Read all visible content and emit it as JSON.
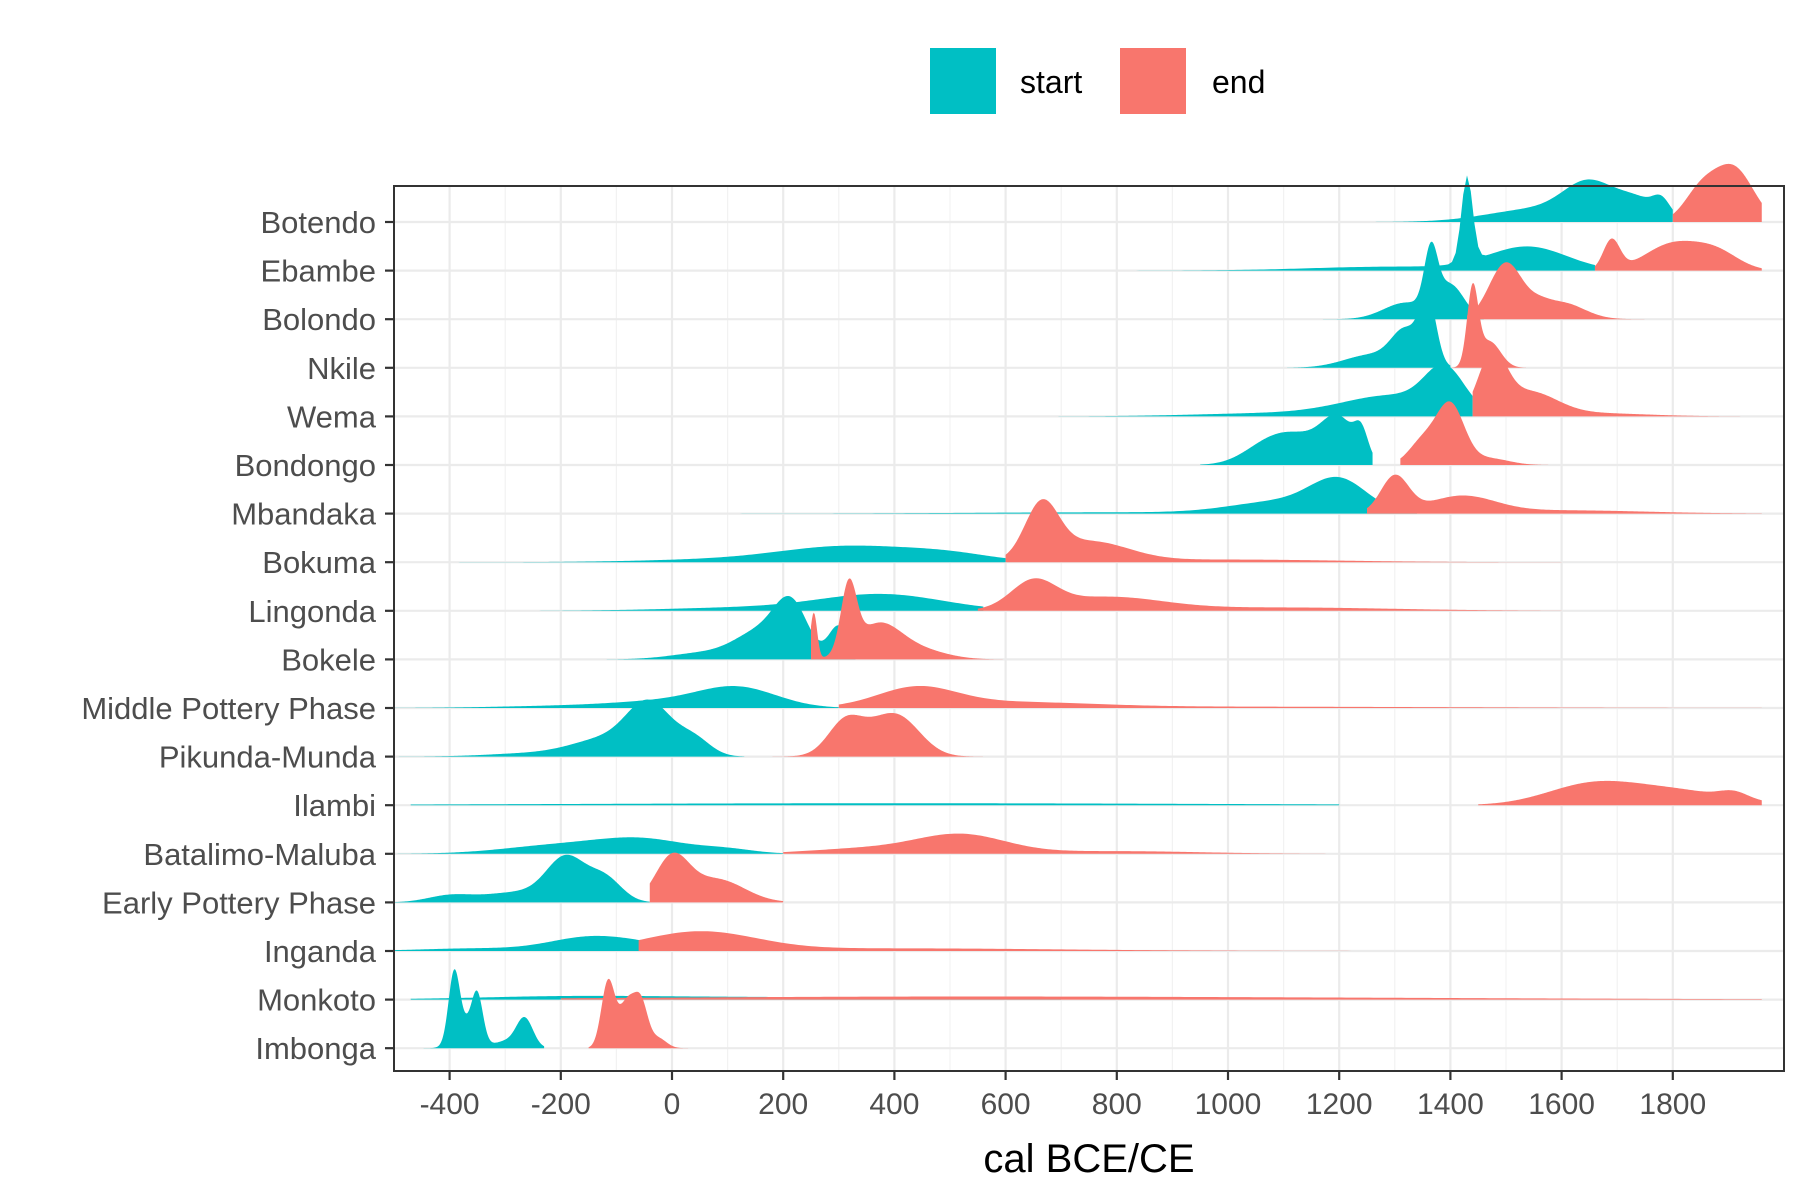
{
  "chart_data": {
    "type": "area",
    "subtype": "ridgeline-density",
    "xlabel": "cal BCE/CE",
    "ylabel": "",
    "xlim": [
      -500,
      2000
    ],
    "x_ticks": [
      -400,
      -200,
      0,
      200,
      400,
      600,
      800,
      1000,
      1200,
      1400,
      1600,
      1800
    ],
    "x_tick_labels": [
      "-400",
      "-200",
      "0",
      "200",
      "400",
      "600",
      "800",
      "1000",
      "1200",
      "1400",
      "1600",
      "1800"
    ],
    "grid": true,
    "legend_position": "top",
    "legend": [
      {
        "name": "start",
        "color": "#00BFC4"
      },
      {
        "name": "end",
        "color": "#F8766D"
      }
    ],
    "categories": [
      "Botendo",
      "Ebambe",
      "Bolondo",
      "Nkile",
      "Wema",
      "Bondongo",
      "Mbandaka",
      "Bokuma",
      "Lingonda",
      "Bokele",
      "Middle Pottery Phase",
      "Pikunda-Munda",
      "Ilambi",
      "Batalimo-Maluba",
      "Early Pottery Phase",
      "Inganda",
      "Monkoto",
      "Imbonga"
    ],
    "note_on_series": "Each category has a start and an end density curve. Peaks are approximated as [center, spread, relative height] components read from the figure; range gives the visible extent.",
    "series": [
      {
        "name": "start",
        "color": "#00BFC4",
        "ridges": [
          {
            "category": "Botendo",
            "range": [
              1000,
              1800
            ],
            "peaks": [
              [
                1650,
                45,
                0.5
              ],
              [
                1560,
                90,
                0.2
              ],
              [
                1740,
                40,
                0.3
              ],
              [
                1780,
                15,
                0.2
              ]
            ]
          },
          {
            "category": "Ebambe",
            "range": [
              -100,
              1660
            ],
            "peaks": [
              [
                1430,
                10,
                1.3
              ],
              [
                1540,
                70,
                0.35
              ],
              [
                1300,
                150,
                0.06
              ]
            ]
          },
          {
            "category": "Bolondo",
            "range": [
              1150,
              1460
            ],
            "peaks": [
              [
                1365,
                12,
                0.85
              ],
              [
                1400,
                25,
                0.5
              ],
              [
                1320,
                40,
                0.25
              ]
            ]
          },
          {
            "category": "Nkile",
            "range": [
              1100,
              1400
            ],
            "peaks": [
              [
                1360,
                15,
                0.95
              ],
              [
                1320,
                25,
                0.5
              ],
              [
                1260,
                50,
                0.2
              ]
            ]
          },
          {
            "category": "Wema",
            "range": [
              600,
              1440
            ],
            "peaks": [
              [
                1390,
                35,
                0.6
              ],
              [
                1300,
                90,
                0.3
              ],
              [
                1100,
                150,
                0.05
              ]
            ]
          },
          {
            "category": "Bondongo",
            "range": [
              950,
              1260
            ],
            "peaks": [
              [
                1200,
                30,
                0.6
              ],
              [
                1240,
                12,
                0.35
              ],
              [
                1120,
                55,
                0.45
              ],
              [
                1060,
                40,
                0.12
              ]
            ]
          },
          {
            "category": "Mbandaka",
            "range": [
              -100,
              1340
            ],
            "peaks": [
              [
                1200,
                50,
                0.45
              ],
              [
                1100,
                90,
                0.18
              ],
              [
                800,
                250,
                0.02
              ]
            ]
          },
          {
            "category": "Bokuma",
            "range": [
              -400,
              600
            ],
            "peaks": [
              [
                320,
                120,
                0.23
              ],
              [
                500,
                80,
                0.1
              ],
              [
                100,
                150,
                0.04
              ]
            ]
          },
          {
            "category": "Lingonda",
            "range": [
              -500,
              560
            ],
            "peaks": [
              [
                380,
                110,
                0.24
              ],
              [
                150,
                150,
                0.05
              ]
            ]
          },
          {
            "category": "Bokele",
            "range": [
              -200,
              330
            ],
            "peaks": [
              [
                215,
                30,
                0.75
              ],
              [
                160,
                45,
                0.4
              ],
              [
                300,
                18,
                0.5
              ],
              [
                60,
                60,
                0.1
              ]
            ]
          },
          {
            "category": "Middle Pottery Phase",
            "range": [
              -500,
              300
            ],
            "peaks": [
              [
                120,
                70,
                0.28
              ],
              [
                0,
                100,
                0.1
              ],
              [
                -200,
                120,
                0.03
              ]
            ]
          },
          {
            "category": "Pikunda-Munda",
            "range": [
              -500,
              130
            ],
            "peaks": [
              [
                -40,
                40,
                0.75
              ],
              [
                40,
                30,
                0.25
              ],
              [
                -120,
                60,
                0.25
              ],
              [
                -250,
                80,
                0.05
              ]
            ]
          },
          {
            "category": "Ilambi",
            "range": [
              -470,
              1200
            ],
            "peaks": [
              [
                400,
                600,
                0.03
              ]
            ]
          },
          {
            "category": "Batalimo-Maluba",
            "range": [
              -500,
              200
            ],
            "peaks": [
              [
                -50,
                80,
                0.2
              ],
              [
                -200,
                100,
                0.13
              ],
              [
                100,
                50,
                0.06
              ]
            ]
          },
          {
            "category": "Early Pottery Phase",
            "range": [
              -500,
              -40
            ],
            "peaks": [
              [
                -190,
                35,
                0.65
              ],
              [
                -120,
                30,
                0.35
              ],
              [
                -280,
                60,
                0.15
              ],
              [
                -400,
                40,
                0.1
              ]
            ]
          },
          {
            "category": "Inganda",
            "range": [
              -500,
              300
            ],
            "peaks": [
              [
                -150,
                70,
                0.2
              ],
              [
                -50,
                60,
                0.08
              ],
              [
                -350,
                100,
                0.04
              ]
            ]
          },
          {
            "category": "Monkoto",
            "range": [
              -470,
              700
            ],
            "peaks": [
              [
                100,
                300,
                0.04
              ],
              [
                -200,
                150,
                0.03
              ]
            ]
          },
          {
            "category": "Imbonga",
            "range": [
              -480,
              -230
            ],
            "peaks": [
              [
                -392,
                10,
                1.0
              ],
              [
                -350,
                10,
                0.65
              ],
              [
                -370,
                20,
                0.35
              ],
              [
                -265,
                15,
                0.45
              ],
              [
                -300,
                20,
                0.1
              ]
            ]
          }
        ]
      },
      {
        "name": "end",
        "color": "#F8766D",
        "ridges": [
          {
            "category": "Botendo",
            "range": [
              1800,
              1960
            ],
            "peaks": [
              [
                1910,
                35,
                0.8
              ],
              [
                1850,
                30,
                0.45
              ]
            ]
          },
          {
            "category": "Ebambe",
            "range": [
              1660,
              1960
            ],
            "peaks": [
              [
                1690,
                15,
                0.45
              ],
              [
                1800,
                50,
                0.4
              ],
              [
                1880,
                40,
                0.25
              ]
            ]
          },
          {
            "category": "Bolondo",
            "range": [
              1430,
              1950
            ],
            "peaks": [
              [
                1500,
                30,
                0.85
              ],
              [
                1600,
                40,
                0.25
              ],
              [
                1560,
                20,
                0.1
              ]
            ]
          },
          {
            "category": "Nkile",
            "range": [
              1400,
              1580
            ],
            "peaks": [
              [
                1440,
                10,
                1.15
              ],
              [
                1470,
                20,
                0.4
              ]
            ]
          },
          {
            "category": "Wema",
            "range": [
              1440,
              1960
            ],
            "peaks": [
              [
                1475,
                25,
                0.85
              ],
              [
                1540,
                50,
                0.35
              ],
              [
                1650,
                100,
                0.05
              ]
            ]
          },
          {
            "category": "Bondongo",
            "range": [
              1310,
              1640
            ],
            "peaks": [
              [
                1400,
                25,
                0.9
              ],
              [
                1350,
                25,
                0.35
              ],
              [
                1470,
                35,
                0.1
              ]
            ]
          },
          {
            "category": "Mbandaka",
            "range": [
              1250,
              1960
            ],
            "peaks": [
              [
                1300,
                25,
                0.55
              ],
              [
                1420,
                60,
                0.25
              ],
              [
                1600,
                150,
                0.05
              ]
            ]
          },
          {
            "category": "Bokuma",
            "range": [
              600,
              1600
            ],
            "peaks": [
              [
                665,
                30,
                0.8
              ],
              [
                750,
                70,
                0.3
              ],
              [
                1000,
                200,
                0.04
              ]
            ]
          },
          {
            "category": "Lingonda",
            "range": [
              550,
              1600
            ],
            "peaks": [
              [
                650,
                40,
                0.4
              ],
              [
                780,
                100,
                0.2
              ],
              [
                1100,
                200,
                0.05
              ]
            ]
          },
          {
            "category": "Bokele",
            "range": [
              250,
              680
            ],
            "peaks": [
              [
                255,
                6,
                0.7
              ],
              [
                318,
                14,
                1.0
              ],
              [
                370,
                40,
                0.5
              ],
              [
                440,
                50,
                0.15
              ]
            ]
          },
          {
            "category": "Middle Pottery Phase",
            "range": [
              300,
              1960
            ],
            "peaks": [
              [
                440,
                70,
                0.28
              ],
              [
                600,
                150,
                0.08
              ],
              [
                1000,
                400,
                0.02
              ]
            ]
          },
          {
            "category": "Pikunda-Munda",
            "range": [
              180,
              560
            ],
            "peaks": [
              [
                310,
                30,
                0.4
              ],
              [
                410,
                40,
                0.45
              ],
              [
                360,
                50,
                0.3
              ]
            ]
          },
          {
            "category": "Ilambi",
            "range": [
              1450,
              1960
            ],
            "peaks": [
              [
                1650,
                80,
                0.28
              ],
              [
                1800,
                100,
                0.22
              ],
              [
                1910,
                25,
                0.1
              ]
            ]
          },
          {
            "category": "Batalimo-Maluba",
            "range": [
              200,
              1200
            ],
            "peaks": [
              [
                520,
                80,
                0.28
              ],
              [
                350,
                100,
                0.08
              ],
              [
                800,
                150,
                0.04
              ]
            ]
          },
          {
            "category": "Early Pottery Phase",
            "range": [
              -40,
              200
            ],
            "peaks": [
              [
                0,
                30,
                0.65
              ],
              [
                80,
                50,
                0.35
              ]
            ]
          },
          {
            "category": "Inganda",
            "range": [
              -60,
              1960
            ],
            "peaks": [
              [
                50,
                100,
                0.28
              ],
              [
                400,
                300,
                0.04
              ]
            ]
          },
          {
            "category": "Monkoto",
            "range": [
              -200,
              1960
            ],
            "peaks": [
              [
                400,
                500,
                0.04
              ],
              [
                1200,
                500,
                0.02
              ]
            ]
          },
          {
            "category": "Imbonga",
            "range": [
              -150,
              30
            ],
            "peaks": [
              [
                -115,
                12,
                1.0
              ],
              [
                -80,
                15,
                0.7
              ],
              [
                -55,
                12,
                0.6
              ],
              [
                -25,
                15,
                0.15
              ]
            ]
          }
        ]
      }
    ]
  }
}
